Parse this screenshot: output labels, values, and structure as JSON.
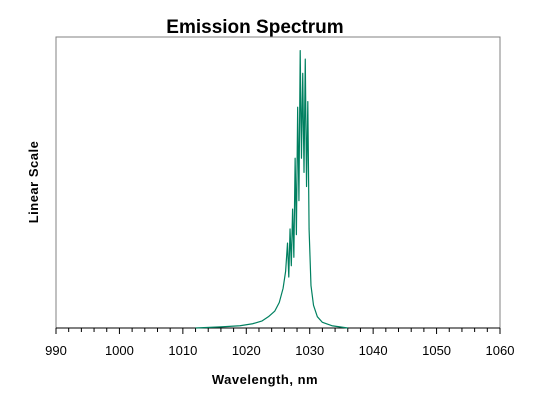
{
  "chart_data": {
    "type": "line",
    "title": "Emission Spectrum",
    "xlabel": "Wavelength, nm",
    "ylabel": "Linear Scale",
    "xlim": [
      990,
      1060
    ],
    "ylim": [
      0,
      1
    ],
    "x_ticks": [
      990,
      1000,
      1010,
      1020,
      1030,
      1040,
      1050,
      1060
    ],
    "y_ticks": [],
    "grid": false,
    "legend": "none",
    "series": [
      {
        "color": "#008060",
        "x": [
          1012,
          1016,
          1019,
          1021,
          1022.5,
          1023.5,
          1024.5,
          1025.2,
          1025.8,
          1026.2,
          1026.5,
          1026.7,
          1026.9,
          1027.1,
          1027.3,
          1027.5,
          1027.7,
          1027.9,
          1028.1,
          1028.3,
          1028.5,
          1028.7,
          1028.9,
          1029.1,
          1029.3,
          1029.5,
          1029.7,
          1029.9,
          1030.2,
          1030.6,
          1031.2,
          1032,
          1033.5,
          1036
        ],
        "y": [
          0.0,
          0.004,
          0.008,
          0.015,
          0.025,
          0.04,
          0.06,
          0.09,
          0.14,
          0.2,
          0.3,
          0.18,
          0.35,
          0.22,
          0.42,
          0.25,
          0.6,
          0.33,
          0.78,
          0.45,
          0.98,
          0.6,
          0.9,
          0.55,
          0.95,
          0.5,
          0.8,
          0.35,
          0.15,
          0.08,
          0.04,
          0.02,
          0.008,
          0.0
        ]
      }
    ]
  }
}
